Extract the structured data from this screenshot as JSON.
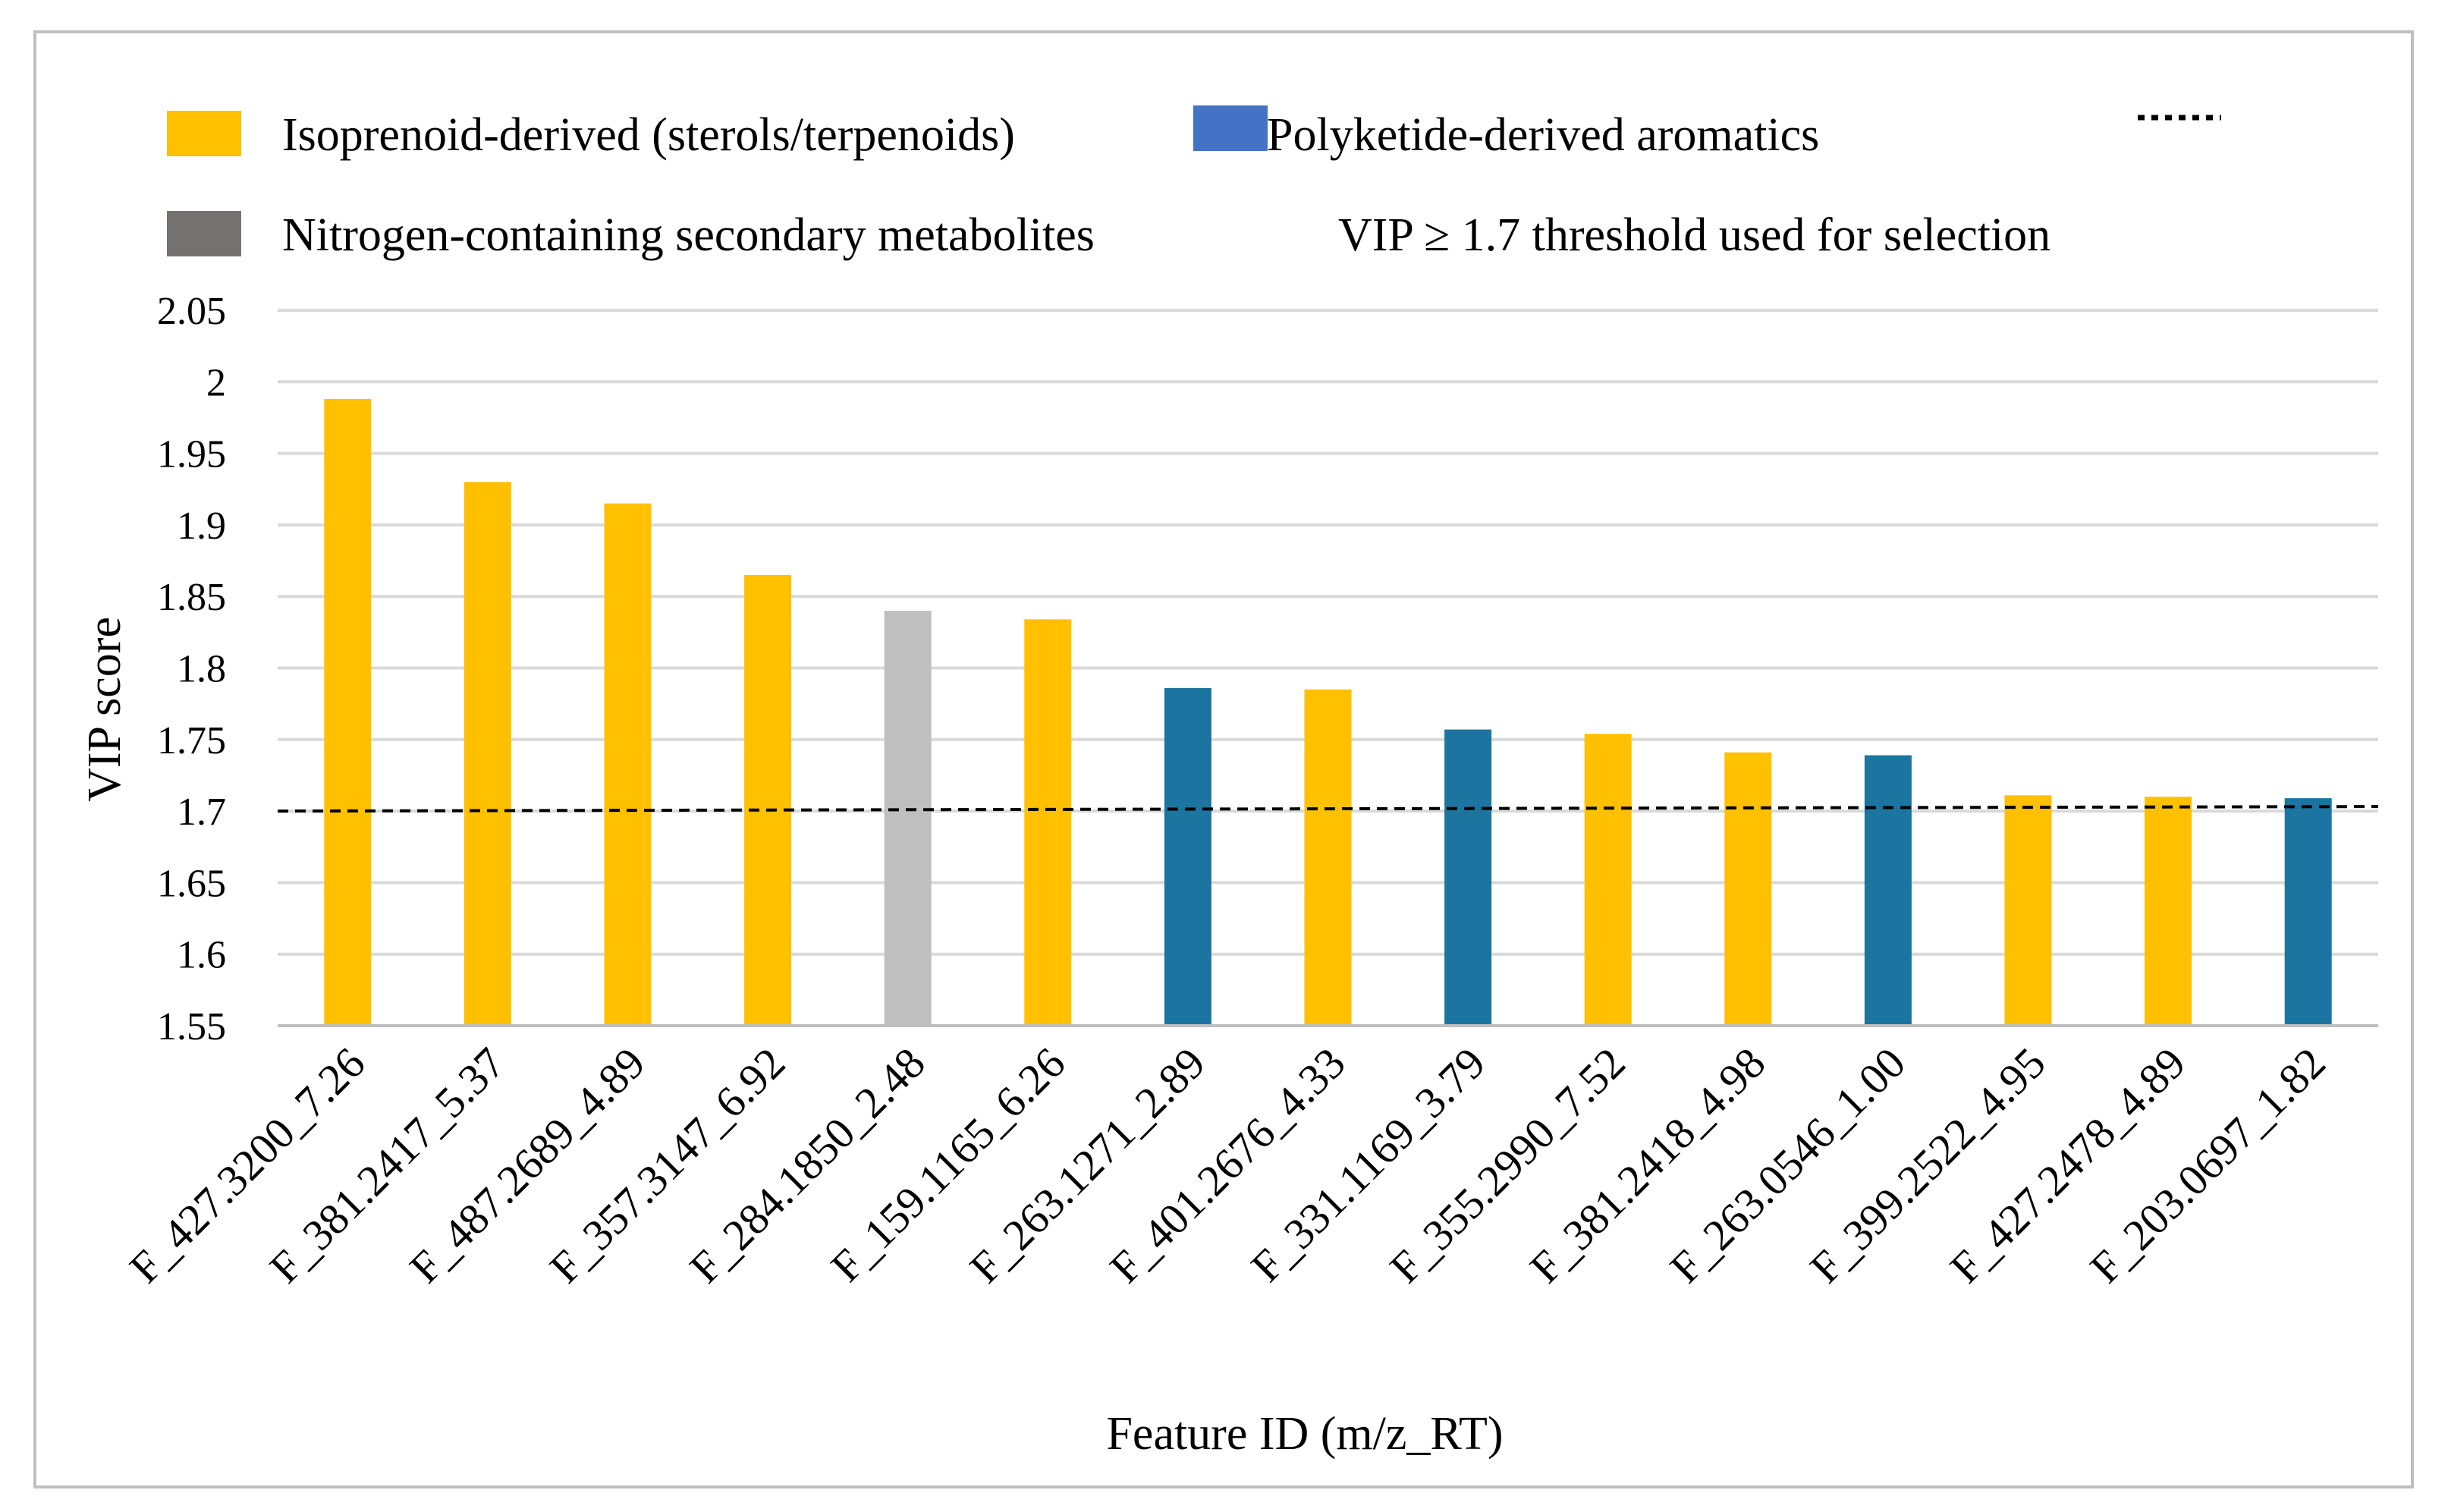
{
  "chart_data": {
    "type": "bar",
    "title": "",
    "xlabel": "Feature ID (m/z_RT)",
    "ylabel": "VIP score",
    "ylim": [
      1.55,
      2.05
    ],
    "ytick_step": 0.05,
    "ytick_labels": [
      "1.55",
      "1.6",
      "1.65",
      "1.7",
      "1.75",
      "1.8",
      "1.85",
      "1.9",
      "1.95",
      "2",
      "2.05"
    ],
    "grid": true,
    "legend_position": "top",
    "categories": [
      "F_427.3200_7.26",
      "F_381.2417_5.37",
      "F_487.2689_4.89",
      "F_357.3147_6.92",
      "F_284.1850_2.48",
      "F_159.1165_6.26",
      "F_263.1271_2.89",
      "F_401.2676_4.33",
      "F_331.1169_3.79",
      "F_355.2990_7.52",
      "F_381.2418_4.98",
      "F_263.0546_1.00",
      "F_399.2522_4.95",
      "F_427.2478_4.89",
      "F_203.0697_1.82"
    ],
    "values": [
      1.988,
      1.93,
      1.915,
      1.865,
      1.84,
      1.834,
      1.786,
      1.785,
      1.757,
      1.754,
      1.741,
      1.739,
      1.711,
      1.71,
      1.709
    ],
    "groups": [
      "Isoprenoid-derived (sterols/terpenoids)",
      "Isoprenoid-derived (sterols/terpenoids)",
      "Isoprenoid-derived (sterols/terpenoids)",
      "Isoprenoid-derived (sterols/terpenoids)",
      "Nitrogen-containing secondary metabolites",
      "Isoprenoid-derived (sterols/terpenoids)",
      "Polyketide-derived aromatics",
      "Isoprenoid-derived (sterols/terpenoids)",
      "Polyketide-derived aromatics",
      "Isoprenoid-derived (sterols/terpenoids)",
      "Isoprenoid-derived (sterols/terpenoids)",
      "Polyketide-derived aromatics",
      "Isoprenoid-derived (sterols/terpenoids)",
      "Isoprenoid-derived (sterols/terpenoids)",
      "Polyketide-derived aromatics"
    ],
    "legend": [
      {
        "label": "Isoprenoid-derived (sterols/terpenoids)",
        "color": "#FFC000",
        "marker": "box"
      },
      {
        "label": "Polyketide-derived aromatics",
        "color": "#4472C4",
        "marker": "box"
      },
      {
        "label": "",
        "color": "#000000",
        "marker": "dotted-line"
      },
      {
        "label": "Nitrogen-containing secondary metabolites",
        "color": "#767171",
        "marker": "box"
      },
      {
        "label": "VIP ≥ 1.7 threshold used for selection",
        "color": "",
        "marker": "none"
      }
    ],
    "bar_colors": {
      "Isoprenoid-derived (sterols/terpenoids)": "#FFC000",
      "Polyketide-derived aromatics": "#1B75A0",
      "Nitrogen-containing secondary metabolites": "#BFBFBF"
    },
    "reference_line": {
      "y": 1.7,
      "style": "dashed",
      "color": "#000000"
    },
    "colors": {
      "grid": "#D9D9D9",
      "frame": "#BFBFBF",
      "axis": "#BFBFBF"
    }
  }
}
